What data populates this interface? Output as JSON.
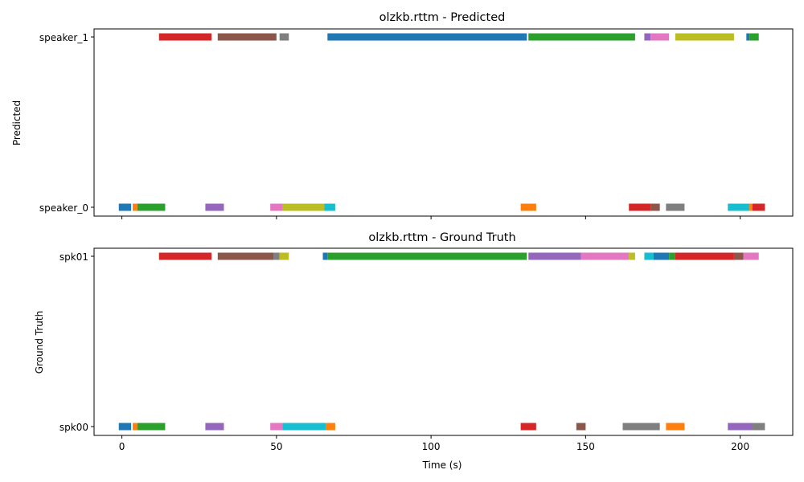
{
  "xlabel": "Time (s)",
  "x_ticks": [
    0,
    50,
    100,
    150,
    200
  ],
  "xlim": [
    -9,
    217
  ],
  "colors": [
    "#1f77b4",
    "#ff7f0e",
    "#2ca02c",
    "#d62728",
    "#9467bd",
    "#8c564b",
    "#e377c2",
    "#7f7f7f",
    "#bcbd22",
    "#17becf"
  ],
  "chart_data": [
    {
      "type": "timeline",
      "title": "olzkb.rttm - Predicted",
      "ylabel": "Predicted",
      "tracks": [
        "speaker_0",
        "speaker_1"
      ],
      "segments": [
        {
          "track": "speaker_1",
          "start": 12,
          "end": 29,
          "color": "#d62728"
        },
        {
          "track": "speaker_1",
          "start": 31,
          "end": 50,
          "color": "#8c564b"
        },
        {
          "track": "speaker_1",
          "start": 51,
          "end": 54,
          "color": "#7f7f7f"
        },
        {
          "track": "speaker_1",
          "start": 66.5,
          "end": 131,
          "color": "#1f77b4"
        },
        {
          "track": "speaker_1",
          "start": 131.5,
          "end": 166,
          "color": "#2ca02c"
        },
        {
          "track": "speaker_1",
          "start": 169,
          "end": 171,
          "color": "#9467bd"
        },
        {
          "track": "speaker_1",
          "start": 171,
          "end": 177,
          "color": "#e377c2"
        },
        {
          "track": "speaker_1",
          "start": 179,
          "end": 198,
          "color": "#bcbd22"
        },
        {
          "track": "speaker_1",
          "start": 202,
          "end": 203,
          "color": "#1f77b4"
        },
        {
          "track": "speaker_1",
          "start": 203,
          "end": 206,
          "color": "#2ca02c"
        },
        {
          "track": "speaker_0",
          "start": -1,
          "end": 3,
          "color": "#1f77b4"
        },
        {
          "track": "speaker_0",
          "start": 3.5,
          "end": 5,
          "color": "#ff7f0e"
        },
        {
          "track": "speaker_0",
          "start": 5,
          "end": 14,
          "color": "#2ca02c"
        },
        {
          "track": "speaker_0",
          "start": 27,
          "end": 33,
          "color": "#9467bd"
        },
        {
          "track": "speaker_0",
          "start": 48,
          "end": 52,
          "color": "#e377c2"
        },
        {
          "track": "speaker_0",
          "start": 52,
          "end": 65.5,
          "color": "#bcbd22"
        },
        {
          "track": "speaker_0",
          "start": 65.5,
          "end": 69,
          "color": "#17becf"
        },
        {
          "track": "speaker_0",
          "start": 129,
          "end": 134,
          "color": "#ff7f0e"
        },
        {
          "track": "speaker_0",
          "start": 164,
          "end": 171,
          "color": "#d62728"
        },
        {
          "track": "speaker_0",
          "start": 171,
          "end": 174,
          "color": "#8c564b"
        },
        {
          "track": "speaker_0",
          "start": 176,
          "end": 182,
          "color": "#7f7f7f"
        },
        {
          "track": "speaker_0",
          "start": 196,
          "end": 203,
          "color": "#17becf"
        },
        {
          "track": "speaker_0",
          "start": 203,
          "end": 204,
          "color": "#ff7f0e"
        },
        {
          "track": "speaker_0",
          "start": 204,
          "end": 208,
          "color": "#d62728"
        }
      ]
    },
    {
      "type": "timeline",
      "title": "olzkb.rttm - Ground Truth",
      "ylabel": "Ground Truth",
      "tracks": [
        "spk00",
        "spk01"
      ],
      "segments": [
        {
          "track": "spk01",
          "start": 12,
          "end": 29,
          "color": "#d62728"
        },
        {
          "track": "spk01",
          "start": 31,
          "end": 49,
          "color": "#8c564b"
        },
        {
          "track": "spk01",
          "start": 49,
          "end": 51,
          "color": "#7f7f7f"
        },
        {
          "track": "spk01",
          "start": 51,
          "end": 54,
          "color": "#bcbd22"
        },
        {
          "track": "spk01",
          "start": 65,
          "end": 66.5,
          "color": "#1f77b4"
        },
        {
          "track": "spk01",
          "start": 66.5,
          "end": 131,
          "color": "#2ca02c"
        },
        {
          "track": "spk01",
          "start": 131.5,
          "end": 148.5,
          "color": "#9467bd"
        },
        {
          "track": "spk01",
          "start": 148.5,
          "end": 164,
          "color": "#e377c2"
        },
        {
          "track": "spk01",
          "start": 164,
          "end": 166,
          "color": "#bcbd22"
        },
        {
          "track": "spk01",
          "start": 169,
          "end": 172,
          "color": "#17becf"
        },
        {
          "track": "spk01",
          "start": 172,
          "end": 177,
          "color": "#1f77b4"
        },
        {
          "track": "spk01",
          "start": 177,
          "end": 179,
          "color": "#2ca02c"
        },
        {
          "track": "spk01",
          "start": 179,
          "end": 198,
          "color": "#d62728"
        },
        {
          "track": "spk01",
          "start": 198,
          "end": 201,
          "color": "#8c564b"
        },
        {
          "track": "spk01",
          "start": 201,
          "end": 206,
          "color": "#e377c2"
        },
        {
          "track": "spk00",
          "start": -1,
          "end": 3,
          "color": "#1f77b4"
        },
        {
          "track": "spk00",
          "start": 3.5,
          "end": 5,
          "color": "#ff7f0e"
        },
        {
          "track": "spk00",
          "start": 5,
          "end": 14,
          "color": "#2ca02c"
        },
        {
          "track": "spk00",
          "start": 27,
          "end": 33,
          "color": "#9467bd"
        },
        {
          "track": "spk00",
          "start": 48,
          "end": 52,
          "color": "#e377c2"
        },
        {
          "track": "spk00",
          "start": 52,
          "end": 66,
          "color": "#17becf"
        },
        {
          "track": "spk00",
          "start": 66,
          "end": 69,
          "color": "#ff7f0e"
        },
        {
          "track": "spk00",
          "start": 129,
          "end": 134,
          "color": "#d62728"
        },
        {
          "track": "spk00",
          "start": 147,
          "end": 150,
          "color": "#8c564b"
        },
        {
          "track": "spk00",
          "start": 162,
          "end": 174,
          "color": "#7f7f7f"
        },
        {
          "track": "spk00",
          "start": 176,
          "end": 182,
          "color": "#ff7f0e"
        },
        {
          "track": "spk00",
          "start": 196,
          "end": 204,
          "color": "#9467bd"
        },
        {
          "track": "spk00",
          "start": 204,
          "end": 208,
          "color": "#7f7f7f"
        }
      ]
    }
  ]
}
